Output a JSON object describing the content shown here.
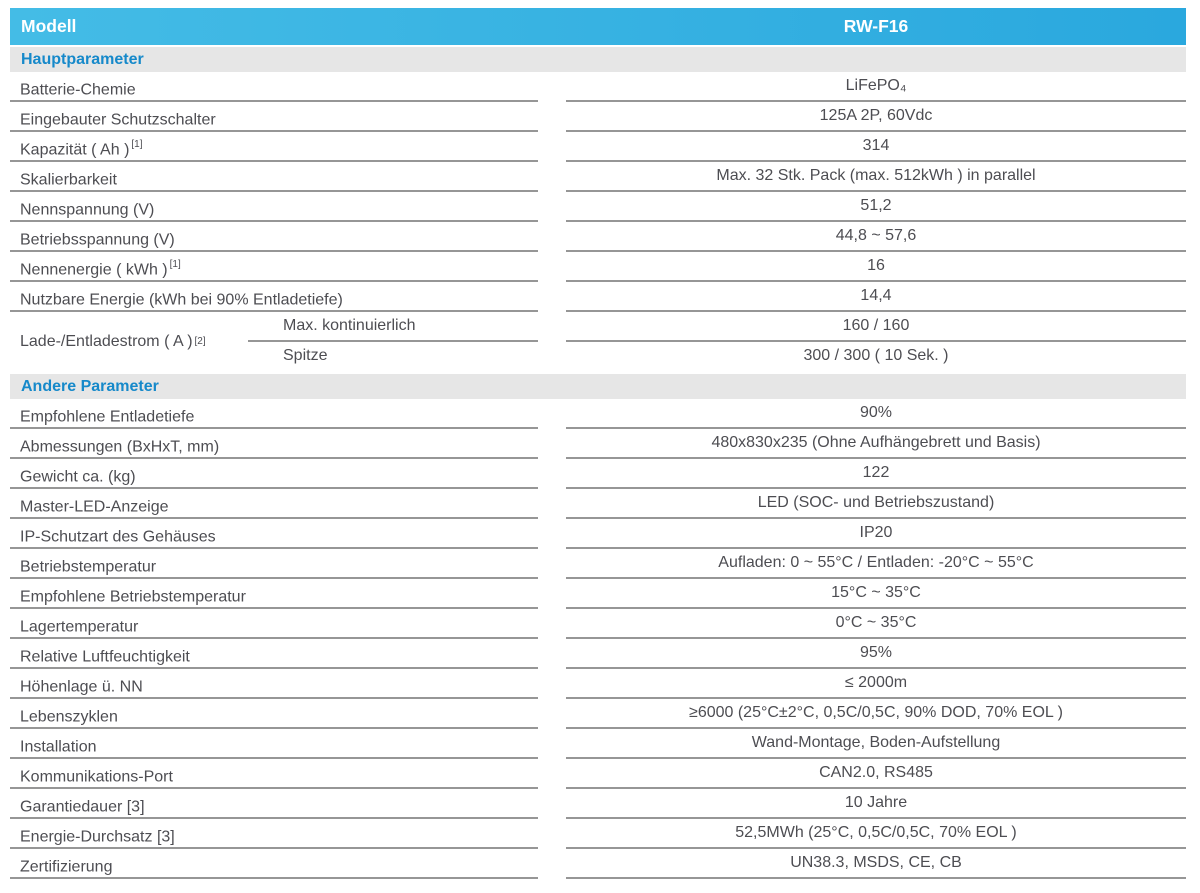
{
  "colors": {
    "header_gradient_start": "#44bce6",
    "header_gradient_end": "#2aa8de",
    "section_band_bg": "#e6e6e6",
    "section_title_color": "#1689ca",
    "text_color": "#4d4d52",
    "line_color": "#969696",
    "header_text_color": "#ffffff"
  },
  "header": {
    "model_label": "Modell",
    "model_value": "RW-F16"
  },
  "sections": [
    {
      "title": "Hauptparameter",
      "rows": [
        {
          "label": "Batterie-Chemie",
          "value": "LiFePO₄"
        },
        {
          "label": "Eingebauter Schutzschalter",
          "value": "125A 2P, 60Vdc"
        },
        {
          "label": "Kapazität ( Ah )",
          "sup": "[1]",
          "value": "314"
        },
        {
          "label": "Skalierbarkeit",
          "value": "Max. 32 Stk. Pack (max. 512kWh ) in parallel"
        },
        {
          "label": "Nennspannung (V)",
          "value": "51,2"
        },
        {
          "label": "Betriebsspannung (V)",
          "value": "44,8 ~ 57,6"
        },
        {
          "label": "Nennenergie ( kWh )",
          "sup": "[1]",
          "value": "16"
        },
        {
          "label": "Nutzbare Energie (kWh bei 90% Entladetiefe)",
          "value": "14,4"
        },
        {
          "type": "combined",
          "label": "Lade-/Entladestrom ( A )",
          "sup": "[2]",
          "subrows": [
            {
              "label": "Max. kontinuierlich",
              "value": "160 / 160"
            },
            {
              "label": "Spitze",
              "value": "300 / 300 ( 10 Sek. )"
            }
          ]
        }
      ]
    },
    {
      "title": "Andere Parameter",
      "rows": [
        {
          "label": "Empfohlene Entladetiefe",
          "value": "90%"
        },
        {
          "label": "Abmessungen (BxHxT, mm)",
          "value": "480x830x235 (Ohne Aufhängebrett und Basis)"
        },
        {
          "label": "Gewicht ca. (kg)",
          "value": "122"
        },
        {
          "label": "Master-LED-Anzeige",
          "value": "LED (SOC- und Betriebszustand)"
        },
        {
          "label": "IP-Schutzart des Gehäuses",
          "value": "IP20"
        },
        {
          "label": "Betriebstemperatur",
          "value": "Aufladen: 0 ~ 55°C / Entladen: -20°C ~ 55°C"
        },
        {
          "label": "Empfohlene Betriebstemperatur",
          "value": "15°C ~ 35°C"
        },
        {
          "label": "Lagertemperatur",
          "value": "0°C ~ 35°C"
        },
        {
          "label": "Relative Luftfeuchtigkeit",
          "value": "95%"
        },
        {
          "label": "Höhenlage ü. NN",
          "value": "≤ 2000m"
        },
        {
          "label": "Lebenszyklen",
          "value": "≥6000 (25°C±2°C, 0,5C/0,5C, 90% DOD, 70% EOL )"
        },
        {
          "label": "Installation",
          "value": "Wand-Montage, Boden-Aufstellung"
        },
        {
          "label": "Kommunikations-Port",
          "value": "CAN2.0, RS485"
        },
        {
          "label": "Garantiedauer [3]",
          "value": "10 Jahre"
        },
        {
          "label": "Energie-Durchsatz [3]",
          "value": "52,5MWh (25°C, 0,5C/0,5C, 70% EOL )"
        },
        {
          "label": "Zertifizierung",
          "value": "UN38.3, MSDS, CE, CB"
        }
      ]
    }
  ]
}
